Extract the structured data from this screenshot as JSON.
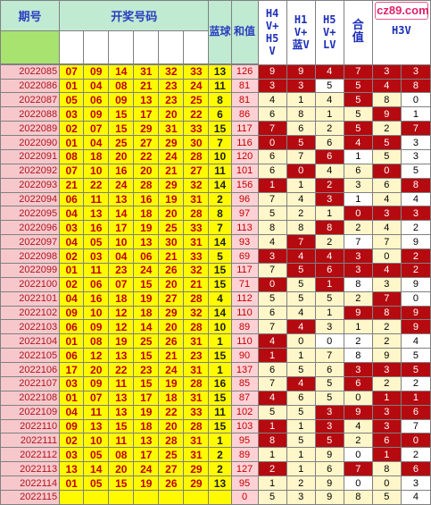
{
  "headers": {
    "issue": "期号",
    "numbers": "开奖号码",
    "blue": "蓝球",
    "sum": "和值",
    "c1": "H4V+H5V",
    "c2": "H1V+蓝V",
    "c3": "H5V+LV",
    "c4": "合值",
    "c5": "H3V"
  },
  "header_c1_lines": [
    "H4",
    "V+",
    "H5",
    "V"
  ],
  "header_c2_lines": [
    "H1",
    "V+",
    "蓝V"
  ],
  "header_c3_lines": [
    "H5",
    "V+",
    "LV"
  ],
  "header_c4_lines": [
    "合",
    "值"
  ],
  "header_c5_lines": [
    "H3V"
  ],
  "logo_text": "cz89.com",
  "rows": [
    {
      "issue": "2022085",
      "nums": [
        "07",
        "09",
        "14",
        "31",
        "32",
        "33"
      ],
      "blue": "13",
      "sum": "126",
      "cells": [
        "9",
        "9",
        "4",
        "7",
        "3",
        "3"
      ]
    },
    {
      "issue": "2022086",
      "nums": [
        "01",
        "04",
        "08",
        "21",
        "23",
        "24"
      ],
      "blue": "11",
      "sum": "81",
      "cells": [
        "3",
        "3",
        "5",
        "5",
        "4",
        "8"
      ]
    },
    {
      "issue": "2022087",
      "nums": [
        "05",
        "06",
        "09",
        "13",
        "23",
        "25"
      ],
      "blue": "8",
      "sum": "81",
      "cells": [
        "4",
        "1",
        "4",
        "5",
        "8",
        "0"
      ]
    },
    {
      "issue": "2022088",
      "nums": [
        "03",
        "09",
        "15",
        "17",
        "20",
        "22"
      ],
      "blue": "6",
      "sum": "86",
      "cells": [
        "6",
        "8",
        "1",
        "5",
        "9",
        "1"
      ]
    },
    {
      "issue": "2022089",
      "nums": [
        "02",
        "07",
        "15",
        "29",
        "31",
        "33"
      ],
      "blue": "15",
      "sum": "117",
      "cells": [
        "7",
        "6",
        "2",
        "5",
        "2",
        "7"
      ]
    },
    {
      "issue": "2022090",
      "nums": [
        "01",
        "04",
        "25",
        "27",
        "29",
        "30"
      ],
      "blue": "7",
      "sum": "116",
      "cells": [
        "0",
        "5",
        "6",
        "4",
        "5",
        "3"
      ]
    },
    {
      "issue": "2022091",
      "nums": [
        "08",
        "18",
        "20",
        "22",
        "24",
        "28"
      ],
      "blue": "10",
      "sum": "120",
      "cells": [
        "6",
        "7",
        "6",
        "1",
        "5",
        "3"
      ]
    },
    {
      "issue": "2022092",
      "nums": [
        "07",
        "10",
        "16",
        "20",
        "21",
        "27"
      ],
      "blue": "11",
      "sum": "101",
      "cells": [
        "6",
        "0",
        "4",
        "6",
        "0",
        "5"
      ]
    },
    {
      "issue": "2022093",
      "nums": [
        "21",
        "22",
        "24",
        "28",
        "29",
        "32"
      ],
      "blue": "14",
      "sum": "156",
      "cells": [
        "1",
        "1",
        "2",
        "3",
        "6",
        "8"
      ]
    },
    {
      "issue": "2022094",
      "nums": [
        "06",
        "11",
        "13",
        "16",
        "19",
        "31"
      ],
      "blue": "2",
      "sum": "96",
      "cells": [
        "7",
        "4",
        "3",
        "1",
        "4",
        "4"
      ]
    },
    {
      "issue": "2022095",
      "nums": [
        "04",
        "13",
        "14",
        "18",
        "20",
        "28"
      ],
      "blue": "8",
      "sum": "97",
      "cells": [
        "5",
        "2",
        "1",
        "0",
        "3",
        "3"
      ]
    },
    {
      "issue": "2022096",
      "nums": [
        "03",
        "16",
        "17",
        "19",
        "25",
        "33"
      ],
      "blue": "7",
      "sum": "113",
      "cells": [
        "8",
        "8",
        "8",
        "2",
        "4",
        "2"
      ]
    },
    {
      "issue": "2022097",
      "nums": [
        "04",
        "05",
        "10",
        "13",
        "30",
        "31"
      ],
      "blue": "14",
      "sum": "93",
      "cells": [
        "4",
        "7",
        "2",
        "7",
        "7",
        "9"
      ]
    },
    {
      "issue": "2022098",
      "nums": [
        "02",
        "03",
        "04",
        "06",
        "21",
        "33"
      ],
      "blue": "5",
      "sum": "69",
      "cells": [
        "3",
        "4",
        "4",
        "3",
        "0",
        "2"
      ]
    },
    {
      "issue": "2022099",
      "nums": [
        "01",
        "11",
        "23",
        "24",
        "26",
        "32"
      ],
      "blue": "15",
      "sum": "117",
      "cells": [
        "7",
        "5",
        "6",
        "3",
        "4",
        "2"
      ]
    },
    {
      "issue": "2022100",
      "nums": [
        "02",
        "06",
        "07",
        "15",
        "20",
        "21"
      ],
      "blue": "15",
      "sum": "71",
      "cells": [
        "0",
        "5",
        "1",
        "8",
        "3",
        "9"
      ]
    },
    {
      "issue": "2022101",
      "nums": [
        "04",
        "16",
        "18",
        "19",
        "27",
        "28"
      ],
      "blue": "4",
      "sum": "112",
      "cells": [
        "5",
        "5",
        "5",
        "2",
        "7",
        "0"
      ]
    },
    {
      "issue": "2022102",
      "nums": [
        "09",
        "10",
        "12",
        "18",
        "29",
        "32"
      ],
      "blue": "14",
      "sum": "110",
      "cells": [
        "6",
        "4",
        "1",
        "9",
        "8",
        "9"
      ]
    },
    {
      "issue": "2022103",
      "nums": [
        "06",
        "09",
        "12",
        "14",
        "20",
        "28"
      ],
      "blue": "10",
      "sum": "89",
      "cells": [
        "7",
        "4",
        "3",
        "1",
        "2",
        "9"
      ]
    },
    {
      "issue": "2022104",
      "nums": [
        "01",
        "08",
        "19",
        "25",
        "26",
        "31"
      ],
      "blue": "1",
      "sum": "110",
      "cells": [
        "4",
        "0",
        "0",
        "2",
        "2",
        "4"
      ]
    },
    {
      "issue": "2022105",
      "nums": [
        "06",
        "12",
        "13",
        "15",
        "21",
        "23"
      ],
      "blue": "15",
      "sum": "90",
      "cells": [
        "1",
        "1",
        "7",
        "8",
        "9",
        "5"
      ]
    },
    {
      "issue": "2022106",
      "nums": [
        "17",
        "20",
        "22",
        "23",
        "24",
        "31"
      ],
      "blue": "1",
      "sum": "137",
      "cells": [
        "6",
        "5",
        "6",
        "3",
        "3",
        "5"
      ]
    },
    {
      "issue": "2022107",
      "nums": [
        "03",
        "09",
        "11",
        "15",
        "19",
        "28"
      ],
      "blue": "16",
      "sum": "85",
      "cells": [
        "7",
        "4",
        "5",
        "6",
        "2",
        "2"
      ]
    },
    {
      "issue": "2022108",
      "nums": [
        "01",
        "07",
        "13",
        "17",
        "18",
        "31"
      ],
      "blue": "15",
      "sum": "87",
      "cells": [
        "4",
        "6",
        "5",
        "0",
        "1",
        "1"
      ]
    },
    {
      "issue": "2022109",
      "nums": [
        "04",
        "11",
        "13",
        "19",
        "22",
        "33"
      ],
      "blue": "11",
      "sum": "102",
      "cells": [
        "5",
        "5",
        "3",
        "9",
        "3",
        "6"
      ]
    },
    {
      "issue": "2022110",
      "nums": [
        "09",
        "13",
        "15",
        "18",
        "20",
        "28"
      ],
      "blue": "15",
      "sum": "103",
      "cells": [
        "1",
        "1",
        "3",
        "4",
        "3",
        "7"
      ]
    },
    {
      "issue": "2022111",
      "nums": [
        "02",
        "10",
        "11",
        "13",
        "28",
        "31"
      ],
      "blue": "1",
      "sum": "95",
      "cells": [
        "8",
        "5",
        "5",
        "2",
        "6",
        "0"
      ]
    },
    {
      "issue": "2022112",
      "nums": [
        "03",
        "05",
        "08",
        "17",
        "25",
        "31"
      ],
      "blue": "2",
      "sum": "89",
      "cells": [
        "1",
        "1",
        "9",
        "0",
        "1",
        "2"
      ]
    },
    {
      "issue": "2022113",
      "nums": [
        "13",
        "14",
        "20",
        "24",
        "27",
        "29"
      ],
      "blue": "2",
      "sum": "127",
      "cells": [
        "2",
        "1",
        "6",
        "7",
        "8",
        "6"
      ]
    },
    {
      "issue": "2022114",
      "nums": [
        "01",
        "05",
        "15",
        "19",
        "26",
        "29"
      ],
      "blue": "13",
      "sum": "95",
      "cells": [
        "1",
        "2",
        "9",
        "0",
        "0",
        "3"
      ]
    },
    {
      "issue": "2022115",
      "nums": [
        "",
        "",
        "",
        "",
        "",
        ""
      ],
      "blue": "",
      "sum": "0",
      "cells": [
        "5",
        "3",
        "9",
        "8",
        "5",
        "4"
      ]
    }
  ],
  "cell_styles": [
    [
      "cr",
      "cr",
      "cr",
      "cr",
      "cr",
      "cr"
    ],
    [
      "cr",
      "cr",
      "cw",
      "cr",
      "cr",
      "cr"
    ],
    [
      "cl",
      "cl",
      "cl",
      "cr",
      "cl",
      "cw"
    ],
    [
      "cl",
      "cl",
      "cl",
      "cl",
      "cr",
      "cw"
    ],
    [
      "cr",
      "cl",
      "cl",
      "cr",
      "cl",
      "cr"
    ],
    [
      "cr",
      "cr",
      "cl",
      "cr",
      "cr",
      "cw"
    ],
    [
      "cl",
      "cl",
      "cr",
      "cw",
      "cl",
      "cw"
    ],
    [
      "cl",
      "cr",
      "cl",
      "cl",
      "cr",
      "cw"
    ],
    [
      "cr",
      "cl",
      "cr",
      "cl",
      "cl",
      "cr"
    ],
    [
      "cl",
      "cl",
      "cr",
      "cw",
      "cl",
      "cw"
    ],
    [
      "cl",
      "cl",
      "cl",
      "cr",
      "cr",
      "cr"
    ],
    [
      "cl",
      "cl",
      "cr",
      "cl",
      "cl",
      "cw"
    ],
    [
      "cl",
      "cr",
      "cl",
      "cw",
      "cl",
      "cw"
    ],
    [
      "cr",
      "cr",
      "cr",
      "cr",
      "cl",
      "cr"
    ],
    [
      "cl",
      "cr",
      "cr",
      "cr",
      "cr",
      "cr"
    ],
    [
      "cr",
      "cl",
      "cr",
      "cw",
      "cl",
      "cw"
    ],
    [
      "cl",
      "cl",
      "cl",
      "cl",
      "cr",
      "cw"
    ],
    [
      "cl",
      "cl",
      "cl",
      "cr",
      "cr",
      "cr"
    ],
    [
      "cl",
      "cr",
      "cl",
      "cl",
      "cl",
      "cr"
    ],
    [
      "cr",
      "cl",
      "cw",
      "cw",
      "cl",
      "cw"
    ],
    [
      "cr",
      "cl",
      "cl",
      "cw",
      "cl",
      "cw"
    ],
    [
      "cl",
      "cl",
      "cl",
      "cr",
      "cr",
      "cr"
    ],
    [
      "cl",
      "cr",
      "cl",
      "cr",
      "cl",
      "cw"
    ],
    [
      "cr",
      "cl",
      "cl",
      "cl",
      "cr",
      "cr"
    ],
    [
      "cl",
      "cl",
      "cr",
      "cr",
      "cr",
      "cr"
    ],
    [
      "cr",
      "cl",
      "cr",
      "cl",
      "cr",
      "cw"
    ],
    [
      "cr",
      "cl",
      "cr",
      "cl",
      "cr",
      "cr"
    ],
    [
      "cl",
      "cl",
      "cl",
      "cw",
      "cr",
      "cw"
    ],
    [
      "cr",
      "cl",
      "cl",
      "cr",
      "cl",
      "cr"
    ],
    [
      "cl",
      "cl",
      "cl",
      "cw",
      "cl",
      "cw"
    ],
    [
      "cl",
      "cl",
      "cl",
      "cl",
      "cl",
      "cw"
    ]
  ],
  "colors": {
    "issue_bg": "#f6c8cc",
    "number_bg": "#fffa00",
    "number_fg": "#c00000",
    "dark_red": "#b50b10",
    "light_cream": "#fff6c9",
    "header_green": "#c0ead2",
    "row_green": "#a8e36f"
  }
}
